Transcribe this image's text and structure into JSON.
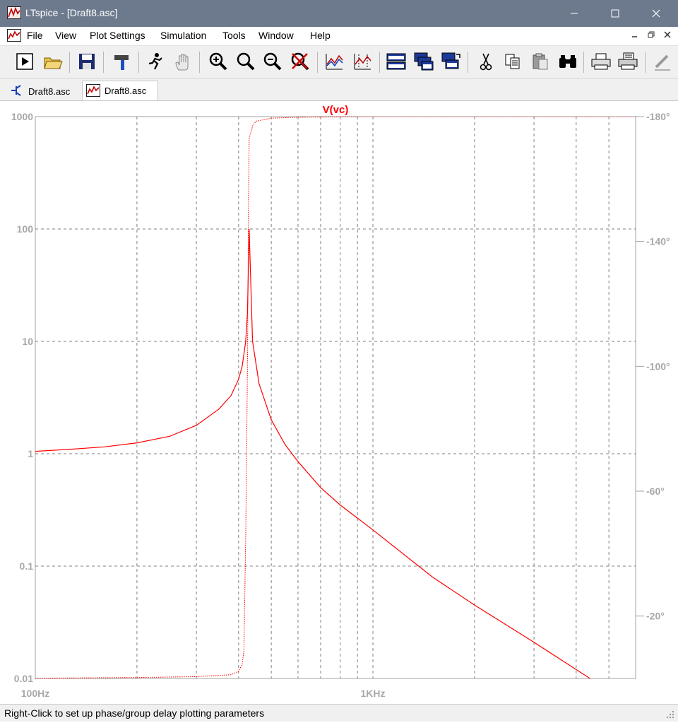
{
  "window": {
    "title": "LTspice - [Draft8.asc]"
  },
  "menu": [
    "File",
    "View",
    "Plot Settings",
    "Simulation",
    "Tools",
    "Window",
    "Help"
  ],
  "tabs": [
    {
      "label": "Draft8.asc",
      "icon": "schematic-icon",
      "active": false
    },
    {
      "label": "Draft8.asc",
      "icon": "waveform-icon",
      "active": true
    }
  ],
  "status": {
    "text": "Right-Click to set up phase/group delay plotting parameters"
  },
  "colors": {
    "trace": "#ff0000",
    "grid": "#808080",
    "axis": "#a0a0a0",
    "titlebar": "#6d7a8e"
  },
  "chart_data": {
    "type": "line",
    "title": "V(vc)",
    "x_scale": "log",
    "y_scale": "log",
    "xlim": [
      100,
      6000
    ],
    "ylim": [
      0.01,
      1000
    ],
    "y2lim": [
      -180,
      0
    ],
    "x_tick_labels": [
      {
        "value": 100,
        "label": "100Hz"
      },
      {
        "value": 1000,
        "label": "1KHz"
      }
    ],
    "y_tick_labels": [
      {
        "value": 1000,
        "label": "1000"
      },
      {
        "value": 100,
        "label": "100"
      },
      {
        "value": 10,
        "label": "10"
      },
      {
        "value": 1,
        "label": "1"
      },
      {
        "value": 0.1,
        "label": "0.1"
      },
      {
        "value": 0.01,
        "label": "0.01"
      }
    ],
    "y2_tick_labels": [
      {
        "value": -20,
        "label": "-20°"
      },
      {
        "value": -60,
        "label": "-60°"
      },
      {
        "value": -100,
        "label": "-100°"
      },
      {
        "value": -140,
        "label": "-140°"
      },
      {
        "value": -180,
        "label": "-180°"
      }
    ],
    "grid": true,
    "series": [
      {
        "name": "V(vc)",
        "style": "solid",
        "axis": "magnitude",
        "x": [
          100,
          130,
          160,
          200,
          250,
          300,
          350,
          380,
          400,
          410,
          420,
          425,
          430,
          440,
          460,
          500,
          550,
          600,
          700,
          800,
          1000,
          1500,
          2000,
          3000,
          4000,
          6000
        ],
        "y": [
          1.05,
          1.1,
          1.15,
          1.25,
          1.43,
          1.79,
          2.5,
          3.3,
          4.6,
          6.0,
          10.0,
          18.0,
          100.0,
          10.0,
          4.2,
          2.0,
          1.2,
          0.85,
          0.5,
          0.35,
          0.21,
          0.08,
          0.045,
          0.021,
          0.012,
          0.0055
        ]
      },
      {
        "name": "V(vc)",
        "style": "dotted",
        "axis": "phase",
        "x": [
          100,
          200,
          300,
          380,
          400,
          410,
          415,
          420,
          425,
          428,
          430,
          440,
          450,
          500,
          600,
          1000,
          6000
        ],
        "y": [
          -0.1,
          -0.3,
          -0.6,
          -1.2,
          -2.3,
          -4.5,
          -9,
          -45,
          -100,
          -150,
          -173,
          -177,
          -178.5,
          -179.5,
          -179.8,
          -180,
          -180
        ]
      }
    ]
  }
}
